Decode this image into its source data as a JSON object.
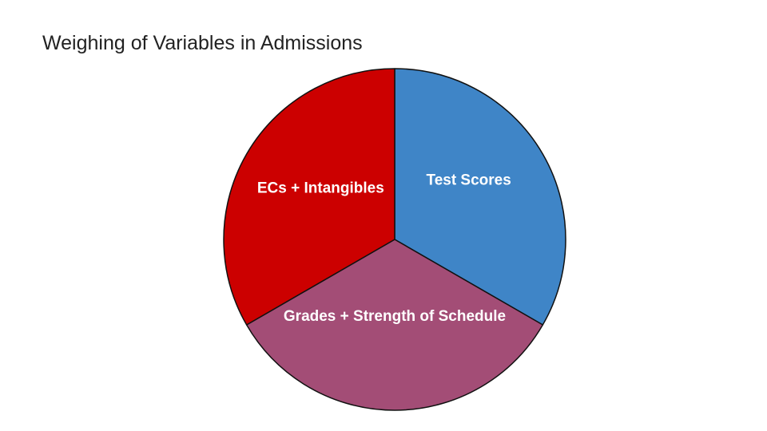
{
  "chart_data": {
    "type": "pie",
    "title": "Weighing of Variables in Admissions",
    "slices": [
      {
        "label": "Test Scores",
        "value": 33.33,
        "color": "#3f85c7"
      },
      {
        "label": "Grades + Strength of Schedule",
        "value": 33.33,
        "color": "#a34d76"
      },
      {
        "label": "ECs + Intangibles",
        "value": 33.33,
        "color": "#cc0000"
      }
    ],
    "start_angle_deg": 0,
    "direction": "clockwise",
    "legend": "none",
    "labels_inside": true
  }
}
